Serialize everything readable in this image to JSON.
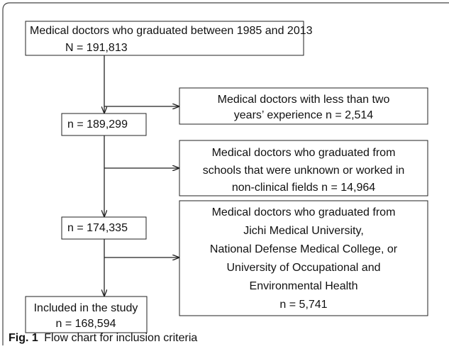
{
  "nodes": [
    {
      "lines": [
        "Medical doctors who graduated between 1985 and 2013",
        "N = 191,813"
      ]
    },
    {
      "lines": [
        "Medical doctors with less than two",
        "years’ experience  n = 2,514"
      ]
    },
    {
      "lines": [
        "n = 189,299"
      ]
    },
    {
      "lines": [
        "Medical doctors who graduated from",
        "schools that were unknown or worked in",
        "non-clinical fields n = 14,964"
      ]
    },
    {
      "lines": [
        "n = 174,335"
      ]
    },
    {
      "lines": [
        "Medical doctors who graduated from",
        "Jichi Medical University,",
        "National Defense Medical College, or",
        "University of Occupational and",
        "Environmental Health",
        "n = 5,741"
      ]
    },
    {
      "lines": [
        "Included in the study",
        "n = 168,594"
      ]
    }
  ],
  "caption": {
    "label": "Fig. 1",
    "text": "Flow chart for inclusion criteria"
  }
}
